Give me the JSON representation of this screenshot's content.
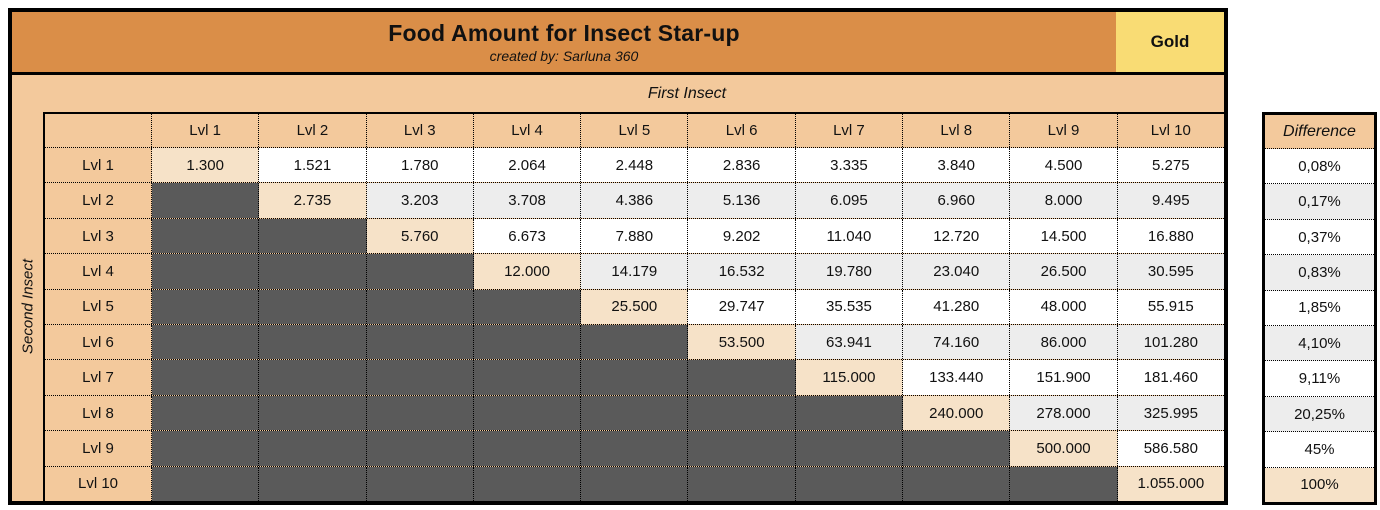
{
  "chart_data": {
    "type": "table",
    "title": "Food Amount for Insect Star-up",
    "subtitle": "created by: Sarluna 360",
    "badge": "Gold",
    "col_group_label": "First Insect",
    "row_group_label": "Second Insect",
    "col_headers": [
      "Lvl 1",
      "Lvl 2",
      "Lvl 3",
      "Lvl 4",
      "Lvl 5",
      "Lvl 6",
      "Lvl 7",
      "Lvl 8",
      "Lvl 9",
      "Lvl 10"
    ],
    "row_headers": [
      "Lvl 1",
      "Lvl 2",
      "Lvl 3",
      "Lvl 4",
      "Lvl 5",
      "Lvl 6",
      "Lvl 7",
      "Lvl 8",
      "Lvl 9",
      "Lvl 10"
    ],
    "rows": [
      [
        "1.300",
        "1.521",
        "1.780",
        "2.064",
        "2.448",
        "2.836",
        "3.335",
        "3.840",
        "4.500",
        "5.275"
      ],
      [
        null,
        "2.735",
        "3.203",
        "3.708",
        "4.386",
        "5.136",
        "6.095",
        "6.960",
        "8.000",
        "9.495"
      ],
      [
        null,
        null,
        "5.760",
        "6.673",
        "7.880",
        "9.202",
        "11.040",
        "12.720",
        "14.500",
        "16.880"
      ],
      [
        null,
        null,
        null,
        "12.000",
        "14.179",
        "16.532",
        "19.780",
        "23.040",
        "26.500",
        "30.595"
      ],
      [
        null,
        null,
        null,
        null,
        "25.500",
        "29.747",
        "35.535",
        "41.280",
        "48.000",
        "55.915"
      ],
      [
        null,
        null,
        null,
        null,
        null,
        "53.500",
        "63.941",
        "74.160",
        "86.000",
        "101.280"
      ],
      [
        null,
        null,
        null,
        null,
        null,
        null,
        "115.000",
        "133.440",
        "151.900",
        "181.460"
      ],
      [
        null,
        null,
        null,
        null,
        null,
        null,
        null,
        "240.000",
        "278.000",
        "325.995"
      ],
      [
        null,
        null,
        null,
        null,
        null,
        null,
        null,
        null,
        "500.000",
        "586.580"
      ],
      [
        null,
        null,
        null,
        null,
        null,
        null,
        null,
        null,
        null,
        "1.055.000"
      ]
    ],
    "difference_header": "Difference",
    "difference_values": [
      "0,08%",
      "0,17%",
      "0,37%",
      "0,83%",
      "1,85%",
      "4,10%",
      "9,11%",
      "20,25%",
      "45%",
      "100%"
    ]
  },
  "colors": {
    "orange": "#DA8E48",
    "gold": "#F9DC74",
    "peach": "#F3C99C",
    "diagonal_highlight": "#F6E2C8",
    "empty_cell_dark": "#5A5A5A",
    "alt_row_gray": "#EDEDED"
  }
}
